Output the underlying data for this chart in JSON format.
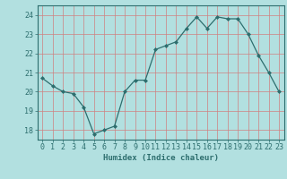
{
  "x": [
    0,
    1,
    2,
    3,
    4,
    5,
    6,
    7,
    8,
    9,
    10,
    11,
    12,
    13,
    14,
    15,
    16,
    17,
    18,
    19,
    20,
    21,
    22,
    23
  ],
  "y": [
    20.7,
    20.3,
    20.0,
    19.9,
    19.2,
    17.8,
    18.0,
    18.2,
    20.0,
    20.6,
    20.6,
    22.2,
    22.4,
    22.6,
    23.3,
    23.9,
    23.3,
    23.9,
    23.8,
    23.8,
    23.0,
    21.9,
    21.0,
    20.0
  ],
  "line_color": "#2d6e6e",
  "marker": "D",
  "marker_size": 2.0,
  "bg_color": "#b2e0e0",
  "grid_color": "#d08080",
  "axis_color": "#2d6e6e",
  "xlabel": "Humidex (Indice chaleur)",
  "ylim": [
    17.5,
    24.5
  ],
  "xlim": [
    -0.5,
    23.5
  ],
  "yticks": [
    18,
    19,
    20,
    21,
    22,
    23,
    24
  ],
  "xticks": [
    0,
    1,
    2,
    3,
    4,
    5,
    6,
    7,
    8,
    9,
    10,
    11,
    12,
    13,
    14,
    15,
    16,
    17,
    18,
    19,
    20,
    21,
    22,
    23
  ],
  "xlabel_fontsize": 6.5,
  "tick_fontsize": 6.0,
  "line_width": 0.9
}
